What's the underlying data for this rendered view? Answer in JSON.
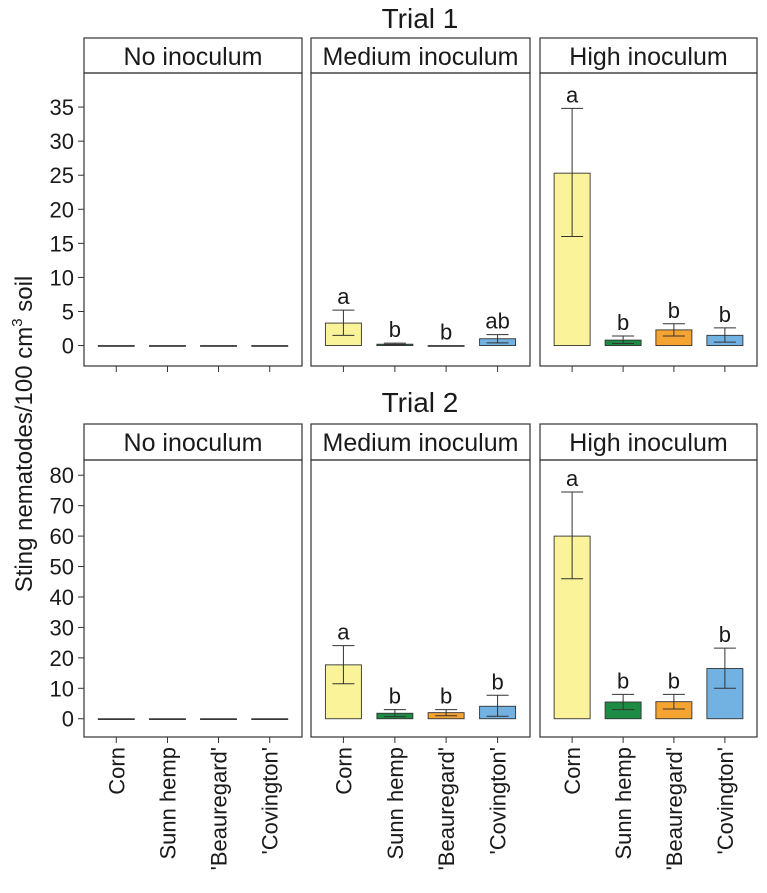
{
  "chart_data": {
    "type": "bar",
    "ylabel": "Sting nematodes/100 cm",
    "ylabel_sup": "3",
    "ylabel_suffix": " soil",
    "categories": [
      "Corn",
      "Sunn hemp",
      "'Beauregard'",
      "'Covington'"
    ],
    "colors": {
      "Corn": "#faf39a",
      "Sunn hemp": "#1e8b45",
      "'Beauregard'": "#f5a431",
      "'Covington'": "#72b2e3"
    },
    "panel_names": [
      "No inoculum",
      "Medium inoculum",
      "High inoculum"
    ],
    "trials": [
      {
        "title": "Trial 1",
        "ylim": [
          -3,
          40
        ],
        "yticks": [
          0,
          5,
          10,
          15,
          20,
          25,
          30,
          35
        ],
        "panels": [
          {
            "name": "No inoculum",
            "values": [
              0,
              0,
              0,
              0
            ],
            "err_low": [
              0,
              0,
              0,
              0
            ],
            "err_high": [
              0,
              0,
              0,
              0
            ],
            "letters": [
              "",
              "",
              "",
              ""
            ]
          },
          {
            "name": "Medium inoculum",
            "values": [
              3.3,
              0.2,
              0,
              1.0
            ],
            "err_low": [
              1.5,
              0.1,
              0,
              0.4
            ],
            "err_high": [
              5.2,
              0.35,
              0,
              1.6
            ],
            "letters": [
              "a",
              "b",
              "b",
              "ab"
            ]
          },
          {
            "name": "High inoculum",
            "values": [
              25.3,
              0.8,
              2.3,
              1.5
            ],
            "err_low": [
              16.0,
              0.3,
              1.4,
              0.5
            ],
            "err_high": [
              34.8,
              1.4,
              3.2,
              2.6
            ],
            "letters": [
              "a",
              "b",
              "b",
              "b"
            ]
          }
        ]
      },
      {
        "title": "Trial 2",
        "ylim": [
          -6,
          85
        ],
        "yticks": [
          0,
          10,
          20,
          30,
          40,
          50,
          60,
          70,
          80
        ],
        "panels": [
          {
            "name": "No inoculum",
            "values": [
              0,
              0,
              0,
              0
            ],
            "err_low": [
              0,
              0,
              0,
              0
            ],
            "err_high": [
              0,
              0,
              0,
              0
            ],
            "letters": [
              "",
              "",
              "",
              ""
            ]
          },
          {
            "name": "Medium inoculum",
            "values": [
              17.7,
              1.8,
              2.0,
              4.1
            ],
            "err_low": [
              11.5,
              0.7,
              1.0,
              0.8
            ],
            "err_high": [
              24.0,
              3.0,
              3.0,
              7.7
            ],
            "letters": [
              "a",
              "b",
              "b",
              "b"
            ]
          },
          {
            "name": "High inoculum",
            "values": [
              60.0,
              5.5,
              5.6,
              16.5
            ],
            "err_low": [
              46.0,
              3.0,
              3.2,
              10.0
            ],
            "err_high": [
              74.5,
              8.0,
              8.0,
              23.2
            ],
            "letters": [
              "a",
              "b",
              "b",
              "b"
            ]
          }
        ]
      }
    ]
  }
}
